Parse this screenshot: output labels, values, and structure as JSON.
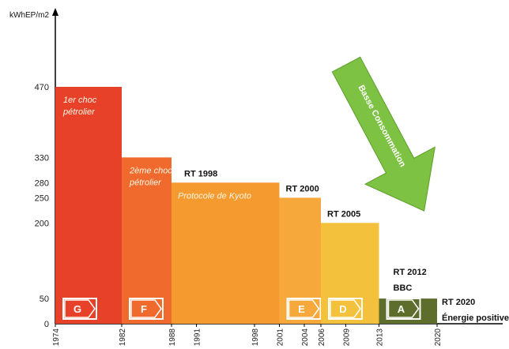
{
  "chart_data": {
    "type": "bar",
    "ylabel": "kWhEP/m2",
    "xlabel": "Énergie positive",
    "y_ticks": [
      0,
      50,
      200,
      250,
      280,
      330,
      470
    ],
    "x_ticks": [
      "1974",
      "1982",
      "1988",
      "1991",
      "1998",
      "2001",
      "2004",
      "2006",
      "2009",
      "2013",
      "2020"
    ],
    "bars": [
      {
        "start": 1974,
        "end": 1982,
        "value": 470,
        "color": "#e8412a",
        "badge": "G",
        "label": "1er choc\npétrolier",
        "label_style": "light"
      },
      {
        "start": 1982,
        "end": 1988,
        "value": 330,
        "color": "#ef6a2c",
        "badge": "F",
        "label": "2ème choc\npétrolier",
        "label_style": "light"
      },
      {
        "start": 1988,
        "end": 2001,
        "value": 280,
        "color": "#f59a2e",
        "badge": "",
        "label": "RT 1998",
        "label_style": "dark",
        "note": "Protocole de Kyoto"
      },
      {
        "start": 2001,
        "end": 2006,
        "value": 250,
        "color": "#f6a93a",
        "badge": "E",
        "label": "RT 2000",
        "label_style": "dark"
      },
      {
        "start": 2006,
        "end": 2013,
        "value": 200,
        "color": "#f3c13c",
        "badge": "D",
        "label": "RT 2005",
        "label_style": "dark"
      },
      {
        "start": 2013,
        "end": 2020,
        "value": 50,
        "color": "#5d6e2c",
        "badge": "A",
        "label": "RT 2012\nBBC",
        "label_style": "dark"
      }
    ],
    "end_label": "RT 2020",
    "arrow_text": "Basse Consommation",
    "arrow_color": "#7dc242",
    "ylim": [
      0,
      500
    ],
    "xlim": [
      1974,
      2022
    ]
  }
}
